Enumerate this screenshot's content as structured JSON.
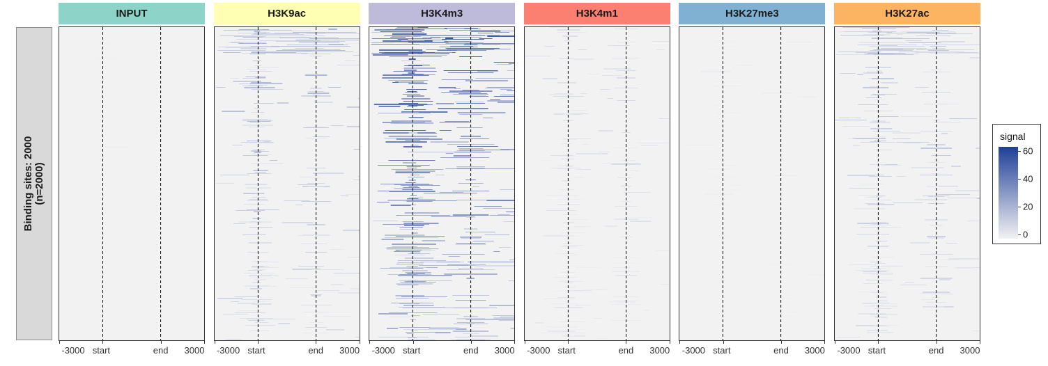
{
  "chart_data": {
    "type": "heatmap",
    "row_label": {
      "line1": "Binding sites: 2000",
      "line2": "(n=2000)"
    },
    "x_ticks": [
      "-3000",
      "start",
      "end",
      "3000"
    ],
    "legend": {
      "title": "signal",
      "range": [
        0,
        60
      ],
      "ticks": [
        "0",
        "20",
        "40",
        "60"
      ],
      "low_color": "#f2f2f2",
      "high_color": "#1f3f98"
    },
    "panels": [
      {
        "name": "INPUT",
        "color": "#8dd3c7",
        "intensity": 0.02,
        "density": 0.06
      },
      {
        "name": "H3K9ac",
        "color": "#ffffb3",
        "intensity": 0.35,
        "density": 0.45
      },
      {
        "name": "H3K4m3",
        "color": "#bebada",
        "intensity": 0.9,
        "density": 0.8
      },
      {
        "name": "H3K4m1",
        "color": "#fb8072",
        "intensity": 0.15,
        "density": 0.35
      },
      {
        "name": "H3K27me3",
        "color": "#80b1d3",
        "intensity": 0.04,
        "density": 0.1
      },
      {
        "name": "H3K27ac",
        "color": "#fdb462",
        "intensity": 0.3,
        "density": 0.45
      }
    ]
  }
}
